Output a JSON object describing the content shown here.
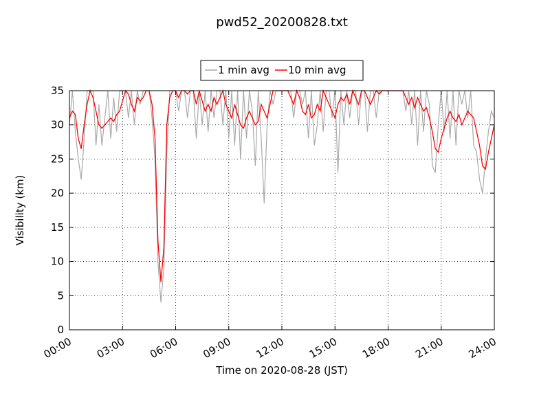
{
  "chart_data": {
    "type": "line",
    "title": "pwd52_20200828.txt",
    "xlabel": "Time on 2020-08-28 (JST)",
    "ylabel": "Visibility (km)",
    "legend": "top",
    "grid": true,
    "x": [
      "00:00",
      "00:10",
      "00:20",
      "00:30",
      "00:40",
      "00:50",
      "01:00",
      "01:10",
      "01:20",
      "01:30",
      "01:40",
      "01:50",
      "02:00",
      "02:10",
      "02:20",
      "02:30",
      "02:40",
      "02:50",
      "03:00",
      "03:10",
      "03:20",
      "03:30",
      "03:40",
      "03:50",
      "04:00",
      "04:10",
      "04:20",
      "04:30",
      "04:40",
      "04:50",
      "05:00",
      "05:10",
      "05:20",
      "05:30",
      "05:40",
      "05:50",
      "06:00",
      "06:10",
      "06:20",
      "06:30",
      "06:40",
      "06:50",
      "07:00",
      "07:10",
      "07:20",
      "07:30",
      "07:40",
      "07:50",
      "08:00",
      "08:10",
      "08:20",
      "08:30",
      "08:40",
      "08:50",
      "09:00",
      "09:10",
      "09:20",
      "09:30",
      "09:40",
      "09:50",
      "10:00",
      "10:10",
      "10:20",
      "10:30",
      "10:40",
      "10:50",
      "11:00",
      "11:10",
      "11:20",
      "11:30",
      "11:40",
      "11:50",
      "12:00",
      "12:10",
      "12:20",
      "12:30",
      "12:40",
      "12:50",
      "13:00",
      "13:10",
      "13:20",
      "13:30",
      "13:40",
      "13:50",
      "14:00",
      "14:10",
      "14:20",
      "14:30",
      "14:40",
      "14:50",
      "15:00",
      "15:10",
      "15:20",
      "15:30",
      "15:40",
      "15:50",
      "16:00",
      "16:10",
      "16:20",
      "16:30",
      "16:40",
      "16:50",
      "17:00",
      "17:10",
      "17:20",
      "17:30",
      "17:40",
      "17:50",
      "18:00",
      "18:10",
      "18:20",
      "18:30",
      "18:40",
      "18:50",
      "19:00",
      "19:10",
      "19:20",
      "19:30",
      "19:40",
      "19:50",
      "20:00",
      "20:10",
      "20:20",
      "20:30",
      "20:40",
      "20:50",
      "21:00",
      "21:10",
      "21:20",
      "21:30",
      "21:40",
      "21:50",
      "22:00",
      "22:10",
      "22:20",
      "22:30",
      "22:40",
      "22:50",
      "23:00",
      "23:10",
      "23:20",
      "23:30",
      "23:40",
      "23:50",
      "24:00"
    ],
    "series": [
      {
        "name": "1 min avg",
        "color": "#a9a9a9",
        "values": [
          30,
          35,
          29,
          25,
          22,
          28,
          35,
          35,
          35,
          27,
          33,
          27,
          31,
          35,
          28,
          34,
          29,
          35,
          35,
          35,
          31,
          35,
          30,
          35,
          33,
          35,
          35,
          35,
          31,
          25,
          10,
          4,
          9,
          26,
          35,
          35,
          35,
          32,
          35,
          35,
          31,
          35,
          35,
          28,
          35,
          30,
          35,
          29,
          35,
          31,
          35,
          35,
          30,
          35,
          28,
          35,
          27,
          35,
          25,
          35,
          28,
          35,
          32,
          24,
          35,
          28,
          18.5,
          30,
          35,
          33,
          35,
          35,
          35,
          35,
          35,
          35,
          31,
          35,
          35,
          33,
          35,
          28,
          35,
          27,
          30,
          35,
          29,
          35,
          35,
          31,
          35,
          23,
          35,
          30,
          35,
          31,
          35,
          35,
          30,
          35,
          35,
          29,
          35,
          35,
          31,
          35,
          35,
          35,
          35,
          35,
          35,
          35,
          35,
          35,
          32,
          35,
          30,
          35,
          27,
          35,
          29,
          35,
          33,
          24,
          23,
          30,
          35,
          29,
          35,
          28,
          35,
          27,
          35,
          33,
          35,
          31,
          35,
          27,
          26,
          22,
          20,
          25,
          29,
          32,
          31
        ]
      },
      {
        "name": "10 min avg",
        "color": "#ff0000",
        "values": [
          31,
          32,
          31.5,
          28,
          26.5,
          30,
          33,
          35,
          34,
          32,
          30,
          29.5,
          30,
          30.5,
          31,
          30.5,
          31.5,
          32,
          33.5,
          35,
          34.5,
          33,
          32,
          34,
          33.5,
          34,
          35,
          35,
          33,
          28,
          13,
          7,
          12,
          30,
          34,
          35,
          35,
          34,
          35,
          35,
          34.5,
          35,
          35,
          33,
          35,
          33.5,
          32,
          33,
          32,
          34,
          33,
          34,
          35,
          33,
          32,
          31,
          33,
          31.5,
          30,
          29.5,
          31,
          32,
          31,
          30,
          30.5,
          33,
          32,
          31,
          33,
          35,
          35,
          35,
          35,
          35,
          35,
          34,
          33,
          35,
          34,
          32,
          31.5,
          33,
          31,
          31.5,
          33,
          32,
          35,
          34,
          33,
          32,
          31,
          33,
          34,
          33.5,
          34.5,
          33,
          35,
          34,
          33,
          35,
          35,
          34,
          33,
          34,
          35,
          34.5,
          35,
          35,
          35,
          35,
          35,
          35,
          35,
          35,
          34,
          33,
          34,
          32.5,
          34,
          33,
          32,
          32.5,
          31,
          29,
          26.5,
          26,
          28,
          29.5,
          31,
          32,
          31,
          30.5,
          31.5,
          30,
          31,
          32,
          31.5,
          31,
          29,
          27,
          24,
          23.5,
          26,
          28,
          30
        ]
      }
    ],
    "xlim": [
      "00:00",
      "24:00"
    ],
    "xticks": [
      "00:00",
      "03:00",
      "06:00",
      "09:00",
      "12:00",
      "15:00",
      "18:00",
      "21:00",
      "24:00"
    ],
    "ylim": [
      0,
      35
    ],
    "yticks": [
      0,
      5,
      10,
      15,
      20,
      25,
      30,
      35
    ]
  }
}
